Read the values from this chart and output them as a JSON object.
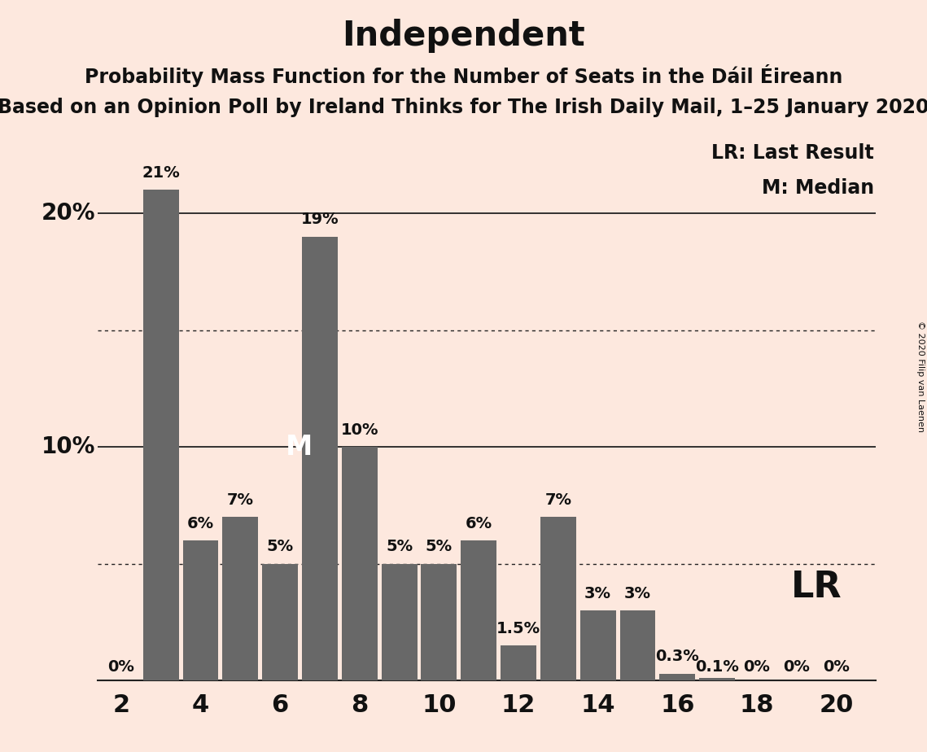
{
  "title": "Independent",
  "subtitle1": "Probability Mass Function for the Number of Seats in the Dáil Éireann",
  "subtitle2": "Based on an Opinion Poll by Ireland Thinks for The Irish Daily Mail, 1–25 January 2020",
  "copyright": "© 2020 Filip van Laenen",
  "seats": [
    2,
    3,
    4,
    5,
    6,
    7,
    8,
    9,
    10,
    11,
    12,
    13,
    14,
    15,
    16,
    17,
    18,
    19,
    20
  ],
  "probabilities": [
    0.0,
    21.0,
    6.0,
    7.0,
    5.0,
    19.0,
    10.0,
    5.0,
    5.0,
    6.0,
    1.5,
    7.0,
    3.0,
    3.0,
    0.3,
    0.1,
    0.0,
    0.0,
    0.0
  ],
  "labels": [
    "0%",
    "21%",
    "6%",
    "7%",
    "5%",
    "19%",
    "10%",
    "5%",
    "5%",
    "6%",
    "1.5%",
    "7%",
    "3%",
    "3%",
    "0.3%",
    "0.1%",
    "0%",
    "0%",
    "0%"
  ],
  "bar_color": "#686868",
  "background_color": "#fde8de",
  "median_seat": 7,
  "lr_seat": 16,
  "lr_label": "LR",
  "legend_lr": "LR: Last Result",
  "legend_m": "M: Median",
  "ylim_max": 23.5,
  "dotted_lines": [
    5.0,
    15.0
  ],
  "solid_lines": [
    10.0,
    20.0
  ],
  "xlabel_ticks": [
    2,
    4,
    6,
    8,
    10,
    12,
    14,
    16,
    18,
    20
  ],
  "title_fontsize": 30,
  "subtitle_fontsize": 17,
  "bar_label_fontsize": 14,
  "axis_label_fontsize": 20,
  "legend_fontsize": 17,
  "m_fontsize": 24
}
